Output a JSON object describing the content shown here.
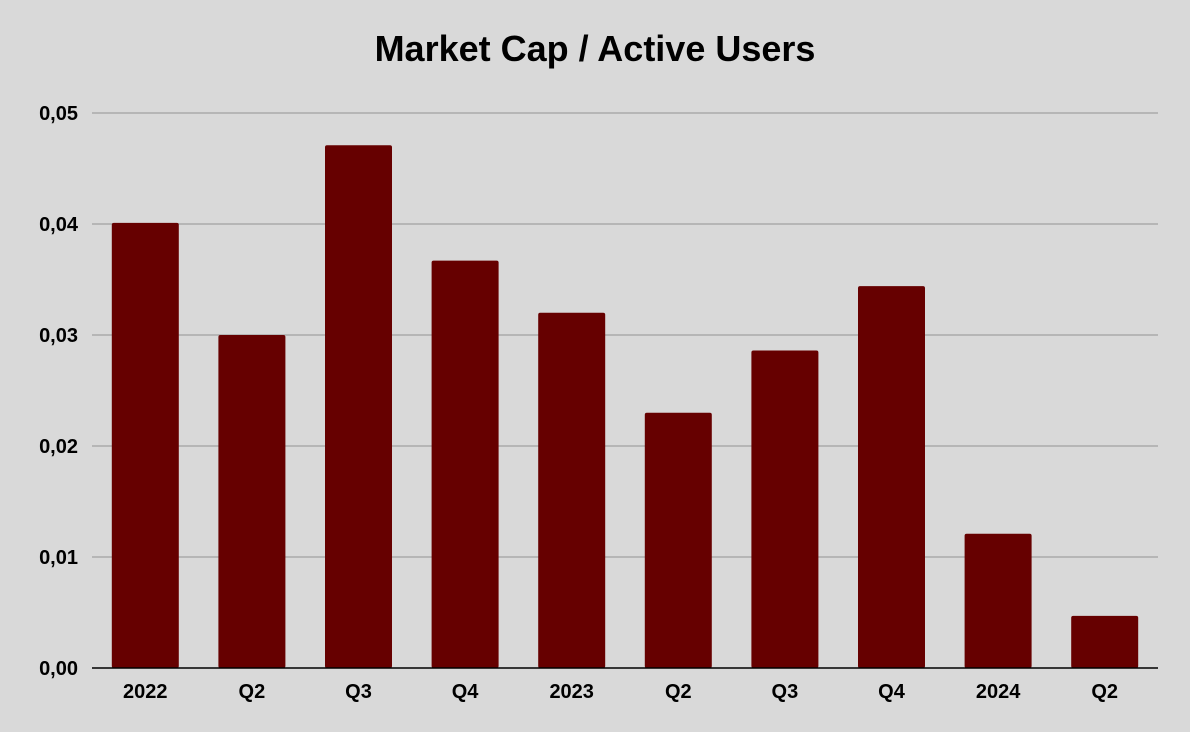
{
  "chart_data": {
    "type": "bar",
    "title": "Market Cap / Active Users",
    "xlabel": "",
    "ylabel": "",
    "categories": [
      "2022",
      "Q2",
      "Q3",
      "Q4",
      "2023",
      "Q2",
      "Q3",
      "Q4",
      "2024",
      "Q2"
    ],
    "values": [
      0.0401,
      0.03,
      0.0471,
      0.0367,
      0.032,
      0.023,
      0.0286,
      0.0344,
      0.0121,
      0.0047
    ],
    "ylim": [
      0,
      0.05
    ],
    "yticks": [
      "0,00",
      "0,01",
      "0,02",
      "0,03",
      "0,04",
      "0,05"
    ],
    "grid": true,
    "legend": "none",
    "bar_color": "#660000",
    "grid_color": "#aaaaaa",
    "axis_color": "#000000",
    "background": "#d9d9d9"
  }
}
